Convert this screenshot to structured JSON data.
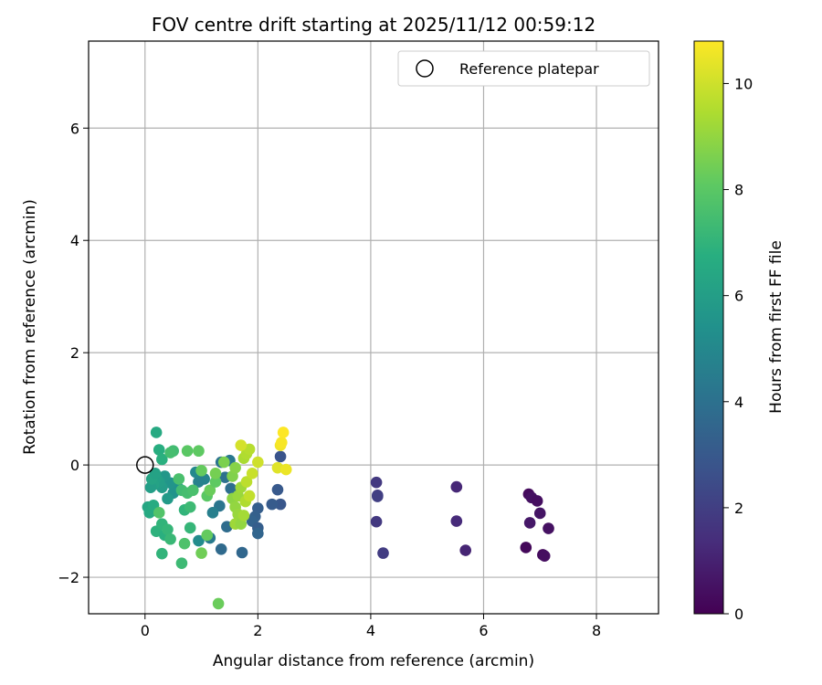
{
  "chart_data": {
    "type": "scatter",
    "title": "FOV centre drift starting at 2025/11/12 00:59:12",
    "xlabel": "Angular distance from reference (arcmin)",
    "ylabel": "Rotation from reference (arcmin)",
    "xlim": [
      -1.0,
      9.1
    ],
    "ylim": [
      -2.65,
      7.55
    ],
    "xticks": [
      0,
      2,
      4,
      6,
      8
    ],
    "yticks": [
      -2,
      0,
      2,
      4,
      6
    ],
    "xtick_labels": [
      "0",
      "2",
      "4",
      "6",
      "8"
    ],
    "ytick_labels": [
      "−2",
      "0",
      "2",
      "4",
      "6"
    ],
    "grid": true,
    "legend": {
      "label": "Reference platepar",
      "position": "top-right",
      "marker": "open-circle"
    },
    "reference_point": {
      "x": 0.0,
      "y": 0.0
    },
    "colorbar": {
      "label": "Hours from first FF file",
      "min": 0,
      "max": 10.8,
      "ticks": [
        0,
        2,
        4,
        6,
        8,
        10
      ],
      "tick_labels": [
        "0",
        "2",
        "4",
        "6",
        "8",
        "10"
      ],
      "colormap": "viridis"
    },
    "points": [
      {
        "x": 6.8,
        "y": -0.52,
        "h": 0.3
      },
      {
        "x": 6.85,
        "y": -0.58,
        "h": 0.5
      },
      {
        "x": 6.95,
        "y": -0.64,
        "h": 0.4
      },
      {
        "x": 7.0,
        "y": -0.86,
        "h": 0.6
      },
      {
        "x": 6.82,
        "y": -1.03,
        "h": 0.7
      },
      {
        "x": 7.15,
        "y": -1.13,
        "h": 0.5
      },
      {
        "x": 6.75,
        "y": -1.47,
        "h": 0.2
      },
      {
        "x": 7.05,
        "y": -1.6,
        "h": 0.3
      },
      {
        "x": 7.08,
        "y": -1.62,
        "h": 0.4
      },
      {
        "x": 5.52,
        "y": -0.39,
        "h": 1.2
      },
      {
        "x": 5.52,
        "y": -1.0,
        "h": 1.3
      },
      {
        "x": 5.68,
        "y": -1.52,
        "h": 1.1
      },
      {
        "x": 4.1,
        "y": -0.31,
        "h": 1.8
      },
      {
        "x": 4.12,
        "y": -0.54,
        "h": 1.9
      },
      {
        "x": 4.12,
        "y": -0.56,
        "h": 2.0
      },
      {
        "x": 4.1,
        "y": -1.01,
        "h": 1.8
      },
      {
        "x": 4.22,
        "y": -1.57,
        "h": 1.9
      },
      {
        "x": 2.4,
        "y": 0.15,
        "h": 2.8
      },
      {
        "x": 2.35,
        "y": -0.44,
        "h": 3.0
      },
      {
        "x": 2.4,
        "y": -0.7,
        "h": 2.9
      },
      {
        "x": 2.25,
        "y": -0.7,
        "h": 3.1
      },
      {
        "x": 2.0,
        "y": -0.77,
        "h": 3.2
      },
      {
        "x": 1.95,
        "y": -0.92,
        "h": 3.3
      },
      {
        "x": 1.9,
        "y": -1.0,
        "h": 3.4
      },
      {
        "x": 2.0,
        "y": -1.12,
        "h": 3.2
      },
      {
        "x": 2.0,
        "y": -1.22,
        "h": 3.5
      },
      {
        "x": 1.72,
        "y": -1.56,
        "h": 3.6
      },
      {
        "x": 1.45,
        "y": -1.1,
        "h": 3.8
      },
      {
        "x": 1.35,
        "y": -1.5,
        "h": 3.7
      },
      {
        "x": 1.32,
        "y": -0.73,
        "h": 4.2
      },
      {
        "x": 1.42,
        "y": -0.22,
        "h": 4.0
      },
      {
        "x": 1.52,
        "y": -0.42,
        "h": 3.9
      },
      {
        "x": 1.35,
        "y": 0.05,
        "h": 4.1
      },
      {
        "x": 1.5,
        "y": 0.08,
        "h": 4.3
      },
      {
        "x": 1.15,
        "y": -1.3,
        "h": 4.4
      },
      {
        "x": 1.2,
        "y": -0.85,
        "h": 4.6
      },
      {
        "x": 1.05,
        "y": -0.25,
        "h": 4.8
      },
      {
        "x": 0.95,
        "y": -0.3,
        "h": 4.7
      },
      {
        "x": 0.9,
        "y": -0.13,
        "h": 5.0
      },
      {
        "x": 0.95,
        "y": -1.35,
        "h": 5.2
      },
      {
        "x": 0.6,
        "y": -0.42,
        "h": 5.4
      },
      {
        "x": 0.5,
        "y": -0.5,
        "h": 5.5
      },
      {
        "x": 0.45,
        "y": -0.32,
        "h": 5.6
      },
      {
        "x": 0.4,
        "y": -0.6,
        "h": 5.8
      },
      {
        "x": 0.35,
        "y": -0.2,
        "h": 5.7
      },
      {
        "x": 0.3,
        "y": -0.4,
        "h": 5.9
      },
      {
        "x": 0.25,
        "y": -0.3,
        "h": 6.0
      },
      {
        "x": 0.2,
        "y": -0.23,
        "h": 6.1
      },
      {
        "x": 0.15,
        "y": -0.35,
        "h": 6.2
      },
      {
        "x": 0.1,
        "y": -0.4,
        "h": 6.0
      },
      {
        "x": 0.12,
        "y": -0.25,
        "h": 6.3
      },
      {
        "x": 0.18,
        "y": -0.15,
        "h": 6.2
      },
      {
        "x": 0.05,
        "y": -0.75,
        "h": 6.4
      },
      {
        "x": 0.08,
        "y": -0.85,
        "h": 6.5
      },
      {
        "x": 0.15,
        "y": -0.72,
        "h": 6.6
      },
      {
        "x": 0.2,
        "y": 0.58,
        "h": 6.5
      },
      {
        "x": 0.25,
        "y": 0.27,
        "h": 6.7
      },
      {
        "x": 0.3,
        "y": 0.1,
        "h": 6.8
      },
      {
        "x": 0.2,
        "y": -1.18,
        "h": 6.9
      },
      {
        "x": 0.3,
        "y": -1.05,
        "h": 7.0
      },
      {
        "x": 0.35,
        "y": -1.25,
        "h": 6.8
      },
      {
        "x": 0.4,
        "y": -1.15,
        "h": 7.1
      },
      {
        "x": 0.3,
        "y": -1.58,
        "h": 7.0
      },
      {
        "x": 0.45,
        "y": -1.32,
        "h": 7.2
      },
      {
        "x": 0.65,
        "y": -1.75,
        "h": 7.3
      },
      {
        "x": 0.7,
        "y": -0.8,
        "h": 7.0
      },
      {
        "x": 0.8,
        "y": -1.12,
        "h": 7.1
      },
      {
        "x": 0.8,
        "y": -0.75,
        "h": 7.3
      },
      {
        "x": 0.5,
        "y": 0.25,
        "h": 7.4
      },
      {
        "x": 0.45,
        "y": 0.22,
        "h": 7.5
      },
      {
        "x": 0.6,
        "y": -0.25,
        "h": 7.6
      },
      {
        "x": 0.65,
        "y": -0.45,
        "h": 7.4
      },
      {
        "x": 0.75,
        "y": -0.5,
        "h": 7.5
      },
      {
        "x": 0.85,
        "y": -0.45,
        "h": 7.6
      },
      {
        "x": 0.7,
        "y": -1.4,
        "h": 7.7
      },
      {
        "x": 0.25,
        "y": -0.85,
        "h": 7.8
      },
      {
        "x": 0.75,
        "y": 0.25,
        "h": 8.0
      },
      {
        "x": 0.95,
        "y": 0.25,
        "h": 8.1
      },
      {
        "x": 1.0,
        "y": -0.1,
        "h": 8.2
      },
      {
        "x": 1.1,
        "y": -0.55,
        "h": 8.0
      },
      {
        "x": 1.15,
        "y": -0.45,
        "h": 8.3
      },
      {
        "x": 1.25,
        "y": -0.3,
        "h": 8.1
      },
      {
        "x": 1.1,
        "y": -1.25,
        "h": 8.2
      },
      {
        "x": 1.0,
        "y": -1.57,
        "h": 8.4
      },
      {
        "x": 1.3,
        "y": -2.47,
        "h": 8.3
      },
      {
        "x": 1.25,
        "y": -0.15,
        "h": 8.5
      },
      {
        "x": 1.4,
        "y": 0.05,
        "h": 8.6
      },
      {
        "x": 1.55,
        "y": -0.2,
        "h": 8.7
      },
      {
        "x": 1.6,
        "y": -0.05,
        "h": 8.8
      },
      {
        "x": 1.55,
        "y": -0.6,
        "h": 8.9
      },
      {
        "x": 1.6,
        "y": -0.75,
        "h": 9.0
      },
      {
        "x": 1.65,
        "y": -0.88,
        "h": 9.1
      },
      {
        "x": 1.6,
        "y": -1.05,
        "h": 9.2
      },
      {
        "x": 1.7,
        "y": -1.05,
        "h": 9.0
      },
      {
        "x": 1.75,
        "y": -0.9,
        "h": 9.3
      },
      {
        "x": 1.65,
        "y": -0.55,
        "h": 9.1
      },
      {
        "x": 1.7,
        "y": -0.4,
        "h": 9.2
      },
      {
        "x": 1.75,
        "y": 0.12,
        "h": 9.4
      },
      {
        "x": 1.8,
        "y": 0.2,
        "h": 9.5
      },
      {
        "x": 1.85,
        "y": 0.28,
        "h": 9.6
      },
      {
        "x": 1.8,
        "y": -0.3,
        "h": 9.7
      },
      {
        "x": 1.78,
        "y": -0.65,
        "h": 9.5
      },
      {
        "x": 1.85,
        "y": -0.55,
        "h": 9.8
      },
      {
        "x": 1.9,
        "y": -0.15,
        "h": 9.9
      },
      {
        "x": 2.0,
        "y": 0.05,
        "h": 10.0
      },
      {
        "x": 1.7,
        "y": 0.35,
        "h": 10.1
      },
      {
        "x": 2.35,
        "y": -0.05,
        "h": 10.3
      },
      {
        "x": 2.5,
        "y": -0.08,
        "h": 10.5
      },
      {
        "x": 2.4,
        "y": 0.35,
        "h": 10.6
      },
      {
        "x": 2.42,
        "y": 0.4,
        "h": 10.7
      },
      {
        "x": 2.45,
        "y": 0.58,
        "h": 10.8
      }
    ]
  }
}
